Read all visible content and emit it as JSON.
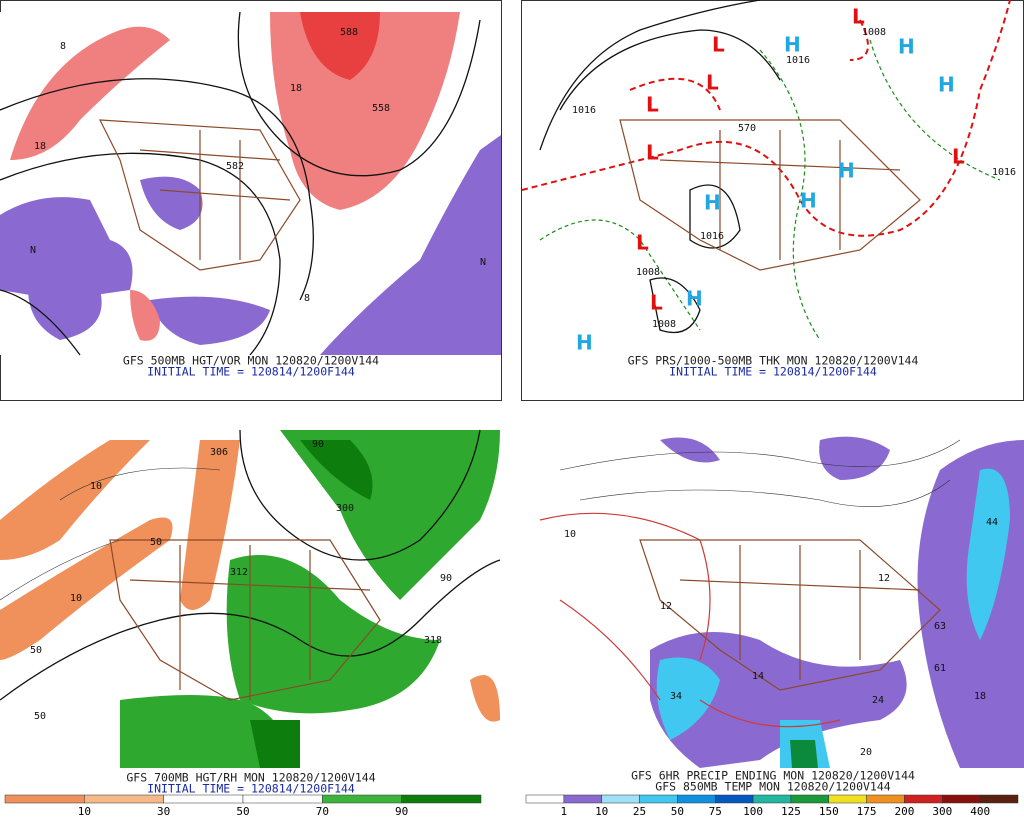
{
  "panels": [
    {
      "title": "GFS 500MB HGT/VOR MON 120820/1200V144",
      "subtitle": "INITIAL TIME = 120814/1200F144",
      "labels": [
        "558",
        "582",
        "588",
        "18",
        "18",
        "8",
        "8",
        "N",
        "N"
      ]
    },
    {
      "title": "GFS PRS/1000-500MB THK MON 120820/1200V144",
      "subtitle": "INITIAL TIME = 120814/1200F144",
      "labels": [
        "L",
        "L",
        "L",
        "L",
        "L",
        "L",
        "L",
        "L",
        "H",
        "H",
        "H",
        "H",
        "H",
        "H",
        "H",
        "H",
        "1016",
        "1016",
        "1008",
        "1008",
        "1008",
        "1016",
        "1016",
        "570"
      ]
    },
    {
      "title": "GFS 700MB HGT/RH MON 120820/1200V144",
      "subtitle": "INITIAL TIME = 120814/1200F144",
      "labels": [
        "306",
        "312",
        "300",
        "50",
        "50",
        "50",
        "90",
        "90",
        "10",
        "10",
        "318"
      ],
      "colorbar": [
        "10",
        "30",
        "50",
        "70",
        "90"
      ]
    },
    {
      "title": "GFS 6HR PRECIP ENDING MON 120820/1200V144",
      "subtitle": "GFS 850MB TEMP MON 120820/1200V144",
      "labels": [
        "44",
        "63",
        "61",
        "18",
        "24",
        "14",
        "34",
        "12",
        "12",
        "20",
        "10"
      ],
      "colorbar": [
        "1",
        "10",
        "25",
        "50",
        "75",
        "100",
        "125",
        "150",
        "175",
        "200",
        "300",
        "400"
      ]
    }
  ]
}
